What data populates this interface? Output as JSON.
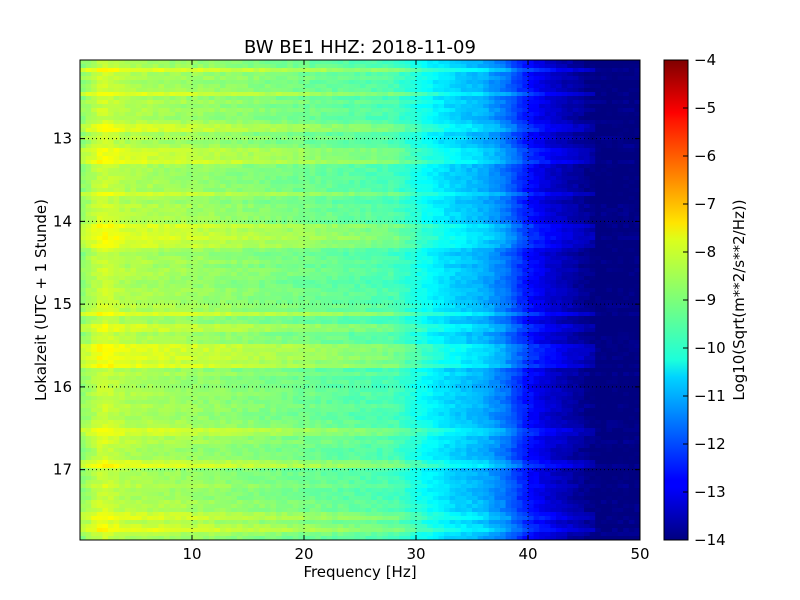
{
  "chart_data": {
    "type": "heatmap",
    "title": "BW BE1 HHZ: 2018-11-09",
    "xlabel": "Frequency [Hz]",
    "ylabel": "Lokalzeit (UTC + 1 Stunde)",
    "xlim": [
      0,
      50
    ],
    "ylim": [
      12.05,
      17.85
    ],
    "y_inverted": true,
    "grid": true,
    "x_ticks": [
      10,
      20,
      30,
      40,
      50
    ],
    "x_tick_labels": [
      "10",
      "20",
      "30",
      "40",
      "50"
    ],
    "y_ticks": [
      13,
      14,
      15,
      16,
      17
    ],
    "y_tick_labels": [
      "13",
      "14",
      "15",
      "16",
      "17"
    ],
    "colorscale": "jet",
    "colorbar": {
      "label": "Log10(Sqrt(m**2/s**2/Hz))",
      "range": [
        -14,
        -4
      ],
      "ticks": [
        -4,
        -5,
        -6,
        -7,
        -8,
        -9,
        -10,
        -11,
        -12,
        -13,
        -14
      ],
      "tick_labels": [
        "−4",
        "−5",
        "−6",
        "−7",
        "−8",
        "−9",
        "−10",
        "−11",
        "−12",
        "−13",
        "−14"
      ]
    },
    "spectrum_profile": {
      "frequency_hz": [
        0,
        2,
        4,
        10,
        20,
        28,
        31,
        33,
        36,
        38,
        40,
        42,
        45,
        46,
        50
      ],
      "log10_psd": [
        -8.9,
        -8.2,
        -8.5,
        -8.7,
        -9.1,
        -9.5,
        -10.2,
        -10.6,
        -11.0,
        -11.6,
        -12.6,
        -13.2,
        -13.8,
        -14.0,
        -14.0
      ]
    },
    "bright_bands_hours": [
      12.17,
      12.47,
      12.87,
      13.15,
      13.25,
      13.68,
      14.05,
      14.12,
      14.22,
      14.3,
      15.12,
      15.28,
      15.53,
      15.63,
      15.73,
      16.55,
      16.93,
      17.57,
      17.7
    ],
    "band_boost_log10": 0.45
  }
}
